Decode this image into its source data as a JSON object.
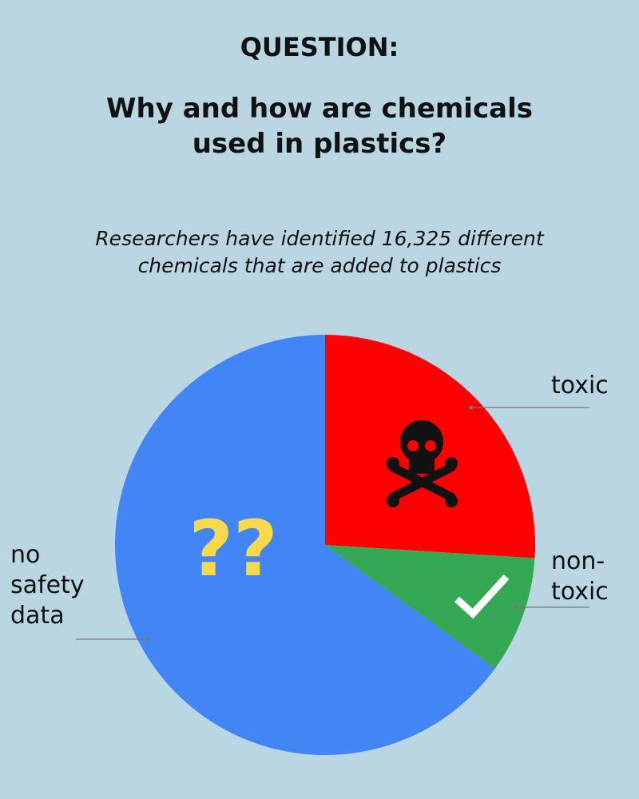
{
  "chart_data": {
    "type": "pie",
    "kicker": "QUESTION:",
    "title": "Why and how are chemicals\nused in plastics?",
    "subtitle": "Researchers have identified 16,325 different\nchemicals that are added to plastics",
    "annotation": "??",
    "categories": [
      "toxic",
      "non-\ntoxic",
      "no\nsafety\ndata"
    ],
    "values": [
      26,
      9,
      65
    ],
    "colors": [
      "#ff0000",
      "#34a853",
      "#4285f4"
    ]
  }
}
